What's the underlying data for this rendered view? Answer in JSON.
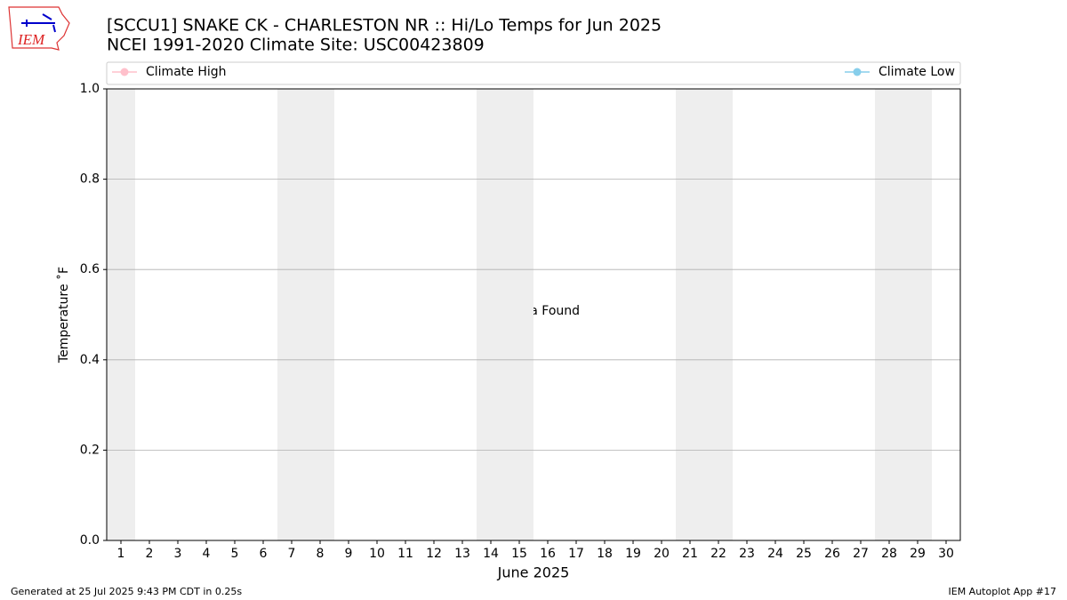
{
  "chart_data": {
    "type": "line",
    "title": "[SCCU1] SNAKE CK - CHARLESTON  NR :: Hi/Lo Temps for Jun 2025",
    "subtitle": "NCEI 1991-2020 Climate Site: USC00423809",
    "logo_text": "IEM",
    "x_label": "June 2025",
    "y_label": "Temperature ˚F",
    "annotation": "No Data Found",
    "footer_left": "Generated at 25 Jul 2025 9:43 PM CDT in 0.25s",
    "footer_right": "IEM Autoplot App #17",
    "x": [
      1,
      2,
      3,
      4,
      5,
      6,
      7,
      8,
      9,
      10,
      11,
      12,
      13,
      14,
      15,
      16,
      17,
      18,
      19,
      20,
      21,
      22,
      23,
      24,
      25,
      26,
      27,
      28,
      29,
      30
    ],
    "xlim": [
      0.5,
      30.5
    ],
    "xticks": [
      1,
      2,
      3,
      4,
      5,
      6,
      7,
      8,
      9,
      10,
      11,
      12,
      13,
      14,
      15,
      16,
      17,
      18,
      19,
      20,
      21,
      22,
      23,
      24,
      25,
      26,
      27,
      28,
      29,
      30
    ],
    "shaded_days": [
      1,
      7,
      8,
      14,
      15,
      21,
      22,
      28,
      29
    ],
    "shade_color": "#eeeeee",
    "ylim": [
      0,
      1
    ],
    "yticks": [
      {
        "value": 0,
        "label": "0.0"
      },
      {
        "value": 0.2,
        "label": "0.2"
      },
      {
        "value": 0.4,
        "label": "0.4"
      },
      {
        "value": 0.6,
        "label": "0.6"
      },
      {
        "value": 0.8,
        "label": "0.8"
      },
      {
        "value": 1,
        "label": "1.0"
      }
    ],
    "grid": true,
    "series": [
      {
        "name": "Climate High",
        "color": "#ffc0cb",
        "values": [
          null,
          null,
          null,
          null,
          null,
          null,
          null,
          null,
          null,
          null,
          null,
          null,
          null,
          null,
          null,
          null,
          null,
          null,
          null,
          null,
          null,
          null,
          null,
          null,
          null,
          null,
          null,
          null,
          null,
          null
        ]
      },
      {
        "name": "Climate Low",
        "color": "#87ceeb",
        "values": [
          null,
          null,
          null,
          null,
          null,
          null,
          null,
          null,
          null,
          null,
          null,
          null,
          null,
          null,
          null,
          null,
          null,
          null,
          null,
          null,
          null,
          null,
          null,
          null,
          null,
          null,
          null,
          null,
          null,
          null
        ]
      }
    ]
  }
}
